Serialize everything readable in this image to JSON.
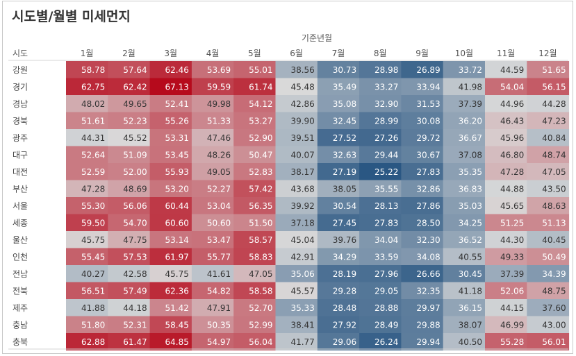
{
  "title": "시도별/월별 미세먼지",
  "chart_data": {
    "type": "heatmap",
    "column_header": "기준년월",
    "row_header": "시도",
    "columns": [
      "1월",
      "2월",
      "3월",
      "4월",
      "5월",
      "6월",
      "7월",
      "8월",
      "9월",
      "10월",
      "11월",
      "12월"
    ],
    "rows": [
      "강원",
      "경기",
      "경남",
      "경북",
      "광주",
      "대구",
      "대전",
      "부산",
      "서울",
      "세종",
      "울산",
      "인천",
      "전남",
      "전북",
      "제주",
      "충남",
      "충북"
    ],
    "values": [
      [
        58.78,
        57.64,
        62.46,
        53.69,
        55.01,
        38.56,
        30.73,
        28.98,
        26.89,
        33.72,
        44.59,
        51.65
      ],
      [
        62.75,
        62.42,
        67.13,
        59.59,
        61.74,
        45.48,
        35.49,
        33.27,
        33.94,
        41.98,
        54.04,
        56.15
      ],
      [
        48.02,
        49.65,
        52.41,
        49.98,
        54.12,
        42.86,
        35.08,
        32.9,
        31.53,
        37.39,
        44.96,
        44.28
      ],
      [
        51.61,
        52.23,
        55.26,
        51.33,
        53.27,
        39.9,
        32.45,
        28.99,
        30.08,
        36.2,
        46.43,
        47.23
      ],
      [
        44.31,
        45.52,
        53.31,
        47.46,
        52.9,
        39.51,
        27.52,
        27.26,
        29.72,
        36.67,
        45.96,
        40.84
      ],
      [
        52.64,
        51.09,
        53.45,
        48.26,
        50.47,
        40.07,
        32.63,
        29.44,
        30.67,
        37.08,
        46.8,
        48.74
      ],
      [
        52.59,
        52.0,
        55.93,
        49.05,
        52.83,
        38.17,
        27.19,
        25.22,
        27.83,
        35.35,
        47.28,
        47.05
      ],
      [
        47.28,
        48.69,
        53.2,
        52.27,
        57.42,
        43.68,
        38.05,
        35.55,
        32.86,
        36.83,
        44.88,
        43.5
      ],
      [
        55.3,
        56.06,
        60.44,
        53.04,
        56.35,
        39.92,
        30.54,
        28.13,
        27.86,
        35.03,
        45.65,
        48.63
      ],
      [
        59.5,
        54.7,
        60.6,
        50.6,
        51.5,
        37.18,
        27.45,
        27.83,
        28.5,
        34.25,
        51.25,
        51.13
      ],
      [
        45.75,
        47.75,
        53.14,
        53.47,
        58.57,
        45.04,
        39.76,
        34.04,
        32.3,
        36.52,
        44.3,
        40.45
      ],
      [
        55.45,
        57.53,
        61.97,
        55.77,
        58.83,
        42.91,
        34.29,
        33.59,
        34.08,
        40.55,
        49.33,
        50.49
      ],
      [
        40.27,
        42.58,
        45.75,
        41.61,
        47.05,
        35.06,
        28.19,
        27.96,
        26.66,
        30.45,
        37.39,
        34.39
      ],
      [
        56.51,
        57.49,
        62.36,
        54.82,
        58.58,
        45.57,
        29.28,
        29.05,
        32.35,
        41.18,
        52.06,
        48.75
      ],
      [
        41.88,
        44.18,
        51.42,
        47.91,
        52.7,
        35.33,
        28.48,
        28.88,
        29.97,
        36.15,
        44.15,
        37.6
      ],
      [
        51.8,
        52.31,
        58.45,
        50.35,
        52.99,
        38.41,
        27.92,
        28.49,
        29.88,
        38.07,
        46.99,
        43.0
      ],
      [
        62.88,
        61.47,
        64.85,
        54.97,
        56.04,
        41.77,
        29.06,
        26.24,
        29.94,
        40.5,
        55.28,
        56.01
      ]
    ],
    "color_scale": {
      "low": "#2a5783",
      "mid": "#d9d9d9",
      "high": "#b60a1c",
      "min": 25.22,
      "mid_value": 45.5,
      "max": 67.13
    },
    "text_color_dark": "#333333",
    "text_color_light": "#ffffff"
  }
}
